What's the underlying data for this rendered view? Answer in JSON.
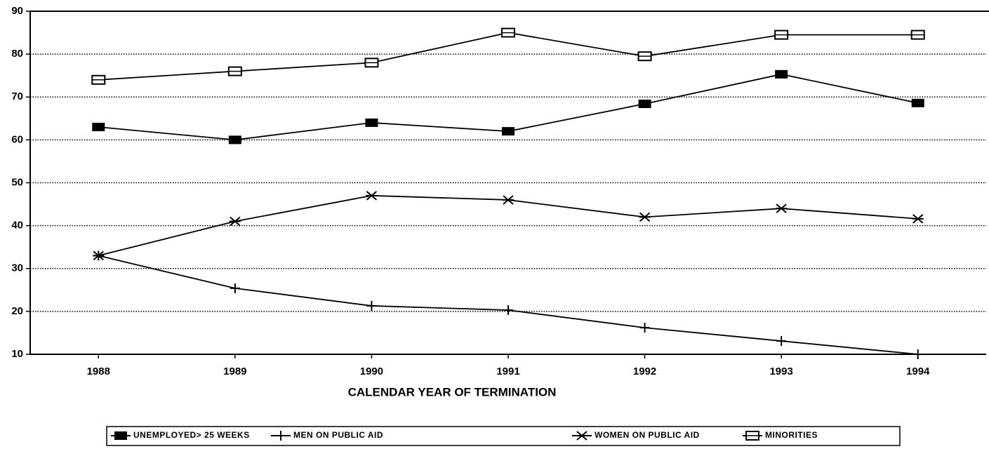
{
  "chart_data": {
    "type": "line",
    "x_label": "CALENDAR YEAR OF TERMINATION",
    "categories": [
      "1988",
      "1989",
      "1990",
      "1991",
      "1992",
      "1993",
      "1994"
    ],
    "ylim": [
      10,
      90
    ],
    "yticks": [
      10,
      20,
      30,
      40,
      50,
      60,
      70,
      80,
      90
    ],
    "grid": true,
    "legend": "bottom",
    "series": [
      {
        "name": "UNEMPLOYED> 25 WEEKS",
        "color": "#000000",
        "marker": "filled-square",
        "values": [
          63,
          60,
          64,
          62,
          68.4,
          75.3,
          68.6
        ]
      },
      {
        "name": "MEN ON PUBLIC AID",
        "color": "#000000",
        "marker": "plus",
        "values": [
          33,
          25.4,
          21.3,
          20.3,
          16.2,
          13.1,
          10
        ]
      },
      {
        "name": "WOMEN ON PUBLIC AID",
        "color": "#000000",
        "marker": "star",
        "values": [
          33,
          41,
          47,
          46,
          42,
          44,
          41.6
        ]
      },
      {
        "name": "MINORITIES",
        "color": "#000000",
        "marker": "open-square",
        "values": [
          74,
          76,
          78,
          85,
          79.5,
          84.5,
          84.5
        ]
      }
    ]
  }
}
